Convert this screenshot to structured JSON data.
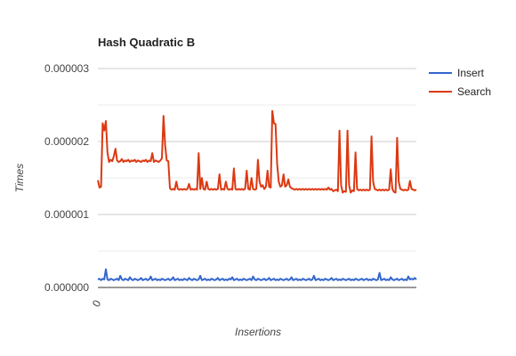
{
  "chart_data": {
    "type": "line",
    "title": "Hash Quadratic B",
    "xlabel": "Insertions",
    "ylabel": "Times",
    "x_tick_labels": [
      "0"
    ],
    "y_tick_labels": [
      "0.000000",
      "0.000001",
      "0.000002",
      "0.000003"
    ],
    "ylim": [
      0,
      3e-06
    ],
    "grid": true,
    "legend_position": "right",
    "series": [
      {
        "name": "Insert",
        "color": "#3366cc",
        "values": [
          1.1e-07,
          1.2e-07,
          1e-07,
          1.2e-07,
          1.1e-07,
          2.5e-07,
          1.1e-07,
          1e-07,
          1.2e-07,
          1.1e-07,
          1e-07,
          1.1e-07,
          1.2e-07,
          1e-07,
          1.6e-07,
          1.1e-07,
          1e-07,
          1.2e-07,
          1.1e-07,
          1e-07,
          1.4e-07,
          1.1e-07,
          1e-07,
          1.2e-07,
          1.1e-07,
          1e-07,
          1.1e-07,
          1.3e-07,
          1e-07,
          1.1e-07,
          1.2e-07,
          1e-07,
          1.1e-07,
          1.5e-07,
          1e-07,
          1.1e-07,
          1.2e-07,
          1e-07,
          1.1e-07,
          1e-07,
          1.2e-07,
          1.1e-07,
          1e-07,
          1.1e-07,
          1.2e-07,
          1e-07,
          1.1e-07,
          1.4e-07,
          1e-07,
          1.1e-07,
          1.2e-07,
          1e-07,
          1.1e-07,
          1e-07,
          1.2e-07,
          1.1e-07,
          1e-07,
          1.3e-07,
          1.1e-07,
          1e-07,
          1.2e-07,
          1.1e-07,
          1e-07,
          1.1e-07,
          1.6e-07,
          1e-07,
          1.1e-07,
          1.2e-07,
          1e-07,
          1.1e-07,
          1e-07,
          1.2e-07,
          1.1e-07,
          1e-07,
          1.1e-07,
          1.3e-07,
          1e-07,
          1.1e-07,
          1.2e-07,
          1e-07,
          1.1e-07,
          1e-07,
          1.2e-07,
          1.1e-07,
          1.4e-07,
          1e-07,
          1.1e-07,
          1.2e-07,
          1e-07,
          1.1e-07,
          1e-07,
          1.2e-07,
          1.1e-07,
          1e-07,
          1.1e-07,
          1.2e-07,
          1e-07,
          1.5e-07,
          1.1e-07,
          1e-07,
          1.2e-07,
          1.1e-07,
          1e-07,
          1.1e-07,
          1.2e-07,
          1e-07,
          1.1e-07,
          1.3e-07,
          1e-07,
          1.1e-07,
          1.2e-07,
          1e-07,
          1.1e-07,
          1e-07,
          1.2e-07,
          1.1e-07,
          1e-07,
          1.1e-07,
          1.2e-07,
          1e-07,
          1.1e-07,
          1.4e-07,
          1e-07,
          1.1e-07,
          1.2e-07,
          1e-07,
          1.1e-07,
          1e-07,
          1.2e-07,
          1.1e-07,
          1e-07,
          1.1e-07,
          1.2e-07,
          1e-07,
          1.1e-07,
          1.6e-07,
          1e-07,
          1.1e-07,
          1.2e-07,
          1e-07,
          1.1e-07,
          1e-07,
          1.2e-07,
          1.1e-07,
          1e-07,
          1.1e-07,
          1.3e-07,
          1e-07,
          1.1e-07,
          1.2e-07,
          1e-07,
          1.1e-07,
          1e-07,
          1.2e-07,
          1.1e-07,
          1e-07,
          1.1e-07,
          1.2e-07,
          1e-07,
          1.1e-07,
          1e-07,
          1.2e-07,
          1.1e-07,
          1e-07,
          1.1e-07,
          1.2e-07,
          1e-07,
          1.1e-07,
          1.2e-07,
          1e-07,
          1.1e-07,
          1e-07,
          1.2e-07,
          1.1e-07,
          1e-07,
          1.1e-07,
          2e-07,
          1e-07,
          1.1e-07,
          1.2e-07,
          1e-07,
          1.1e-07,
          1e-07,
          1.4e-07,
          1.1e-07,
          1e-07,
          1.1e-07,
          1.2e-07,
          1e-07,
          1.1e-07,
          1.2e-07,
          1e-07,
          1.1e-07,
          1e-07,
          1.5e-07,
          1.1e-07,
          1.2e-07,
          1.1e-07,
          1.3e-07,
          1.1e-07
        ]
      },
      {
        "name": "Search",
        "color": "#dc3912",
        "values": [
          1.47e-06,
          1.37e-06,
          1.38e-06,
          2.25e-06,
          2.15e-06,
          2.28e-06,
          1.85e-06,
          1.72e-06,
          1.75e-06,
          1.73e-06,
          1.8e-06,
          1.9e-06,
          1.74e-06,
          1.72e-06,
          1.73e-06,
          1.76e-06,
          1.72e-06,
          1.74e-06,
          1.73e-06,
          1.75e-06,
          1.72e-06,
          1.74e-06,
          1.73e-06,
          1.75e-06,
          1.72e-06,
          1.74e-06,
          1.73e-06,
          1.72e-06,
          1.74e-06,
          1.73e-06,
          1.75e-06,
          1.72e-06,
          1.74e-06,
          1.73e-06,
          1.84e-06,
          1.72e-06,
          1.74e-06,
          1.73e-06,
          1.72e-06,
          1.74e-06,
          1.77e-06,
          2.35e-06,
          1.95e-06,
          1.74e-06,
          1.73e-06,
          1.36e-06,
          1.34e-06,
          1.35e-06,
          1.34e-06,
          1.45e-06,
          1.35e-06,
          1.34e-06,
          1.35e-06,
          1.34e-06,
          1.35e-06,
          1.34e-06,
          1.35e-06,
          1.42e-06,
          1.34e-06,
          1.35e-06,
          1.34e-06,
          1.35e-06,
          1.34e-06,
          1.84e-06,
          1.35e-06,
          1.5e-06,
          1.35e-06,
          1.34e-06,
          1.45e-06,
          1.35e-06,
          1.34e-06,
          1.35e-06,
          1.34e-06,
          1.35e-06,
          1.34e-06,
          1.35e-06,
          1.55e-06,
          1.34e-06,
          1.35e-06,
          1.34e-06,
          1.45e-06,
          1.35e-06,
          1.34e-06,
          1.35e-06,
          1.34e-06,
          1.63e-06,
          1.35e-06,
          1.34e-06,
          1.35e-06,
          1.34e-06,
          1.35e-06,
          1.34e-06,
          1.35e-06,
          1.6e-06,
          1.35e-06,
          1.34e-06,
          1.5e-06,
          1.35e-06,
          1.34e-06,
          1.35e-06,
          1.75e-06,
          1.45e-06,
          1.38e-06,
          1.4e-06,
          1.35e-06,
          1.38e-06,
          1.6e-06,
          1.38e-06,
          1.37e-06,
          2.42e-06,
          2.25e-06,
          2.24e-06,
          1.7e-06,
          1.45e-06,
          1.38e-06,
          1.4e-06,
          1.55e-06,
          1.38e-06,
          1.4e-06,
          1.48e-06,
          1.38e-06,
          1.36e-06,
          1.35e-06,
          1.34e-06,
          1.35e-06,
          1.34e-06,
          1.35e-06,
          1.34e-06,
          1.35e-06,
          1.34e-06,
          1.35e-06,
          1.34e-06,
          1.35e-06,
          1.34e-06,
          1.35e-06,
          1.34e-06,
          1.35e-06,
          1.34e-06,
          1.35e-06,
          1.34e-06,
          1.35e-06,
          1.34e-06,
          1.35e-06,
          1.34e-06,
          1.37e-06,
          1.34e-06,
          1.35e-06,
          1.32e-06,
          1.33e-06,
          1.34e-06,
          1.32e-06,
          2.15e-06,
          1.4e-06,
          1.3e-06,
          1.32e-06,
          1.31e-06,
          2.15e-06,
          1.4e-06,
          1.3e-06,
          1.33e-06,
          1.32e-06,
          1.85e-06,
          1.35e-06,
          1.33e-06,
          1.34e-06,
          1.33e-06,
          1.34e-06,
          1.33e-06,
          1.34e-06,
          1.33e-06,
          1.34e-06,
          2.07e-06,
          1.45e-06,
          1.35e-06,
          1.34e-06,
          1.33e-06,
          1.34e-06,
          1.33e-06,
          1.34e-06,
          1.33e-06,
          1.34e-06,
          1.33e-06,
          1.34e-06,
          1.62e-06,
          1.35e-06,
          1.31e-06,
          1.3e-06,
          2.05e-06,
          1.45e-06,
          1.35e-06,
          1.34e-06,
          1.33e-06,
          1.34e-06,
          1.33e-06,
          1.34e-06,
          1.46e-06,
          1.35e-06,
          1.34e-06,
          1.33e-06,
          1.34e-06
        ]
      }
    ]
  }
}
